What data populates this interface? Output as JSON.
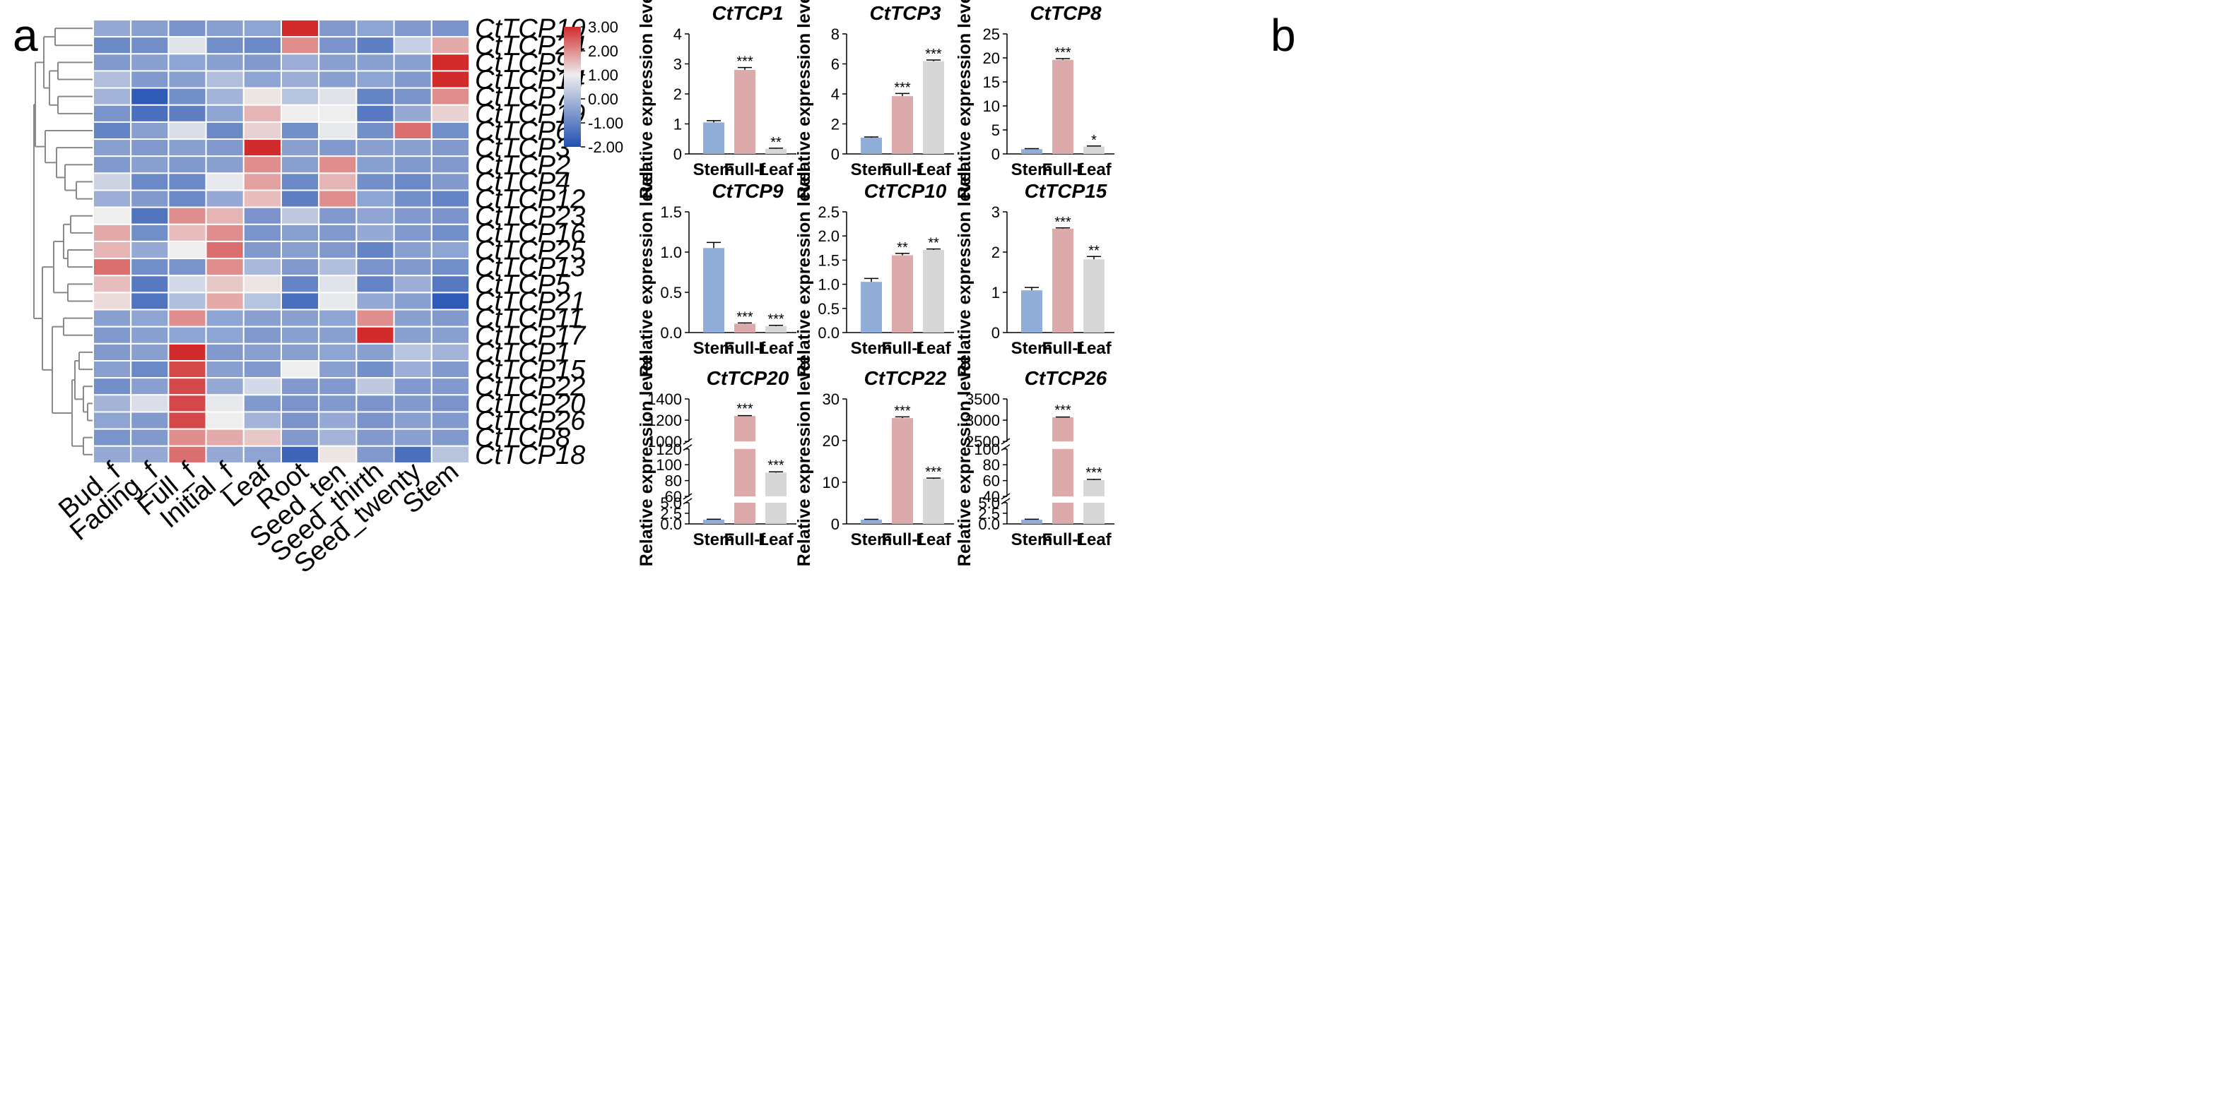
{
  "panels": {
    "a": "a",
    "b": "b"
  },
  "chart_data": [
    {
      "type": "heatmap",
      "title": "",
      "rows": [
        "CtTCP10",
        "CtTCP24",
        "CtTCP9",
        "CtTCP14",
        "CtTCP7",
        "CtTCP19",
        "CtTCP6",
        "CtTCP3",
        "CtTCP2",
        "CtTCP4",
        "CtTCP12",
        "CtTCP23",
        "CtTCP16",
        "CtTCP25",
        "CtTCP13",
        "CtTCP5",
        "CtTCP21",
        "CtTCP11",
        "CtTCP17",
        "CtTCP1",
        "CtTCP15",
        "CtTCP22",
        "CtTCP20",
        "CtTCP26",
        "CtTCP8",
        "CtTCP18"
      ],
      "columns": [
        "Bud_f",
        "Fading_f",
        "Full_f",
        "Initial_f",
        "Leaf",
        "Root",
        "Seed_ten",
        "Seed_thirth",
        "Seed_twenty",
        "Stem"
      ],
      "values": [
        [
          -0.3,
          -0.5,
          -0.7,
          -0.5,
          -0.4,
          3.0,
          -0.6,
          -0.4,
          -0.6,
          -0.7
        ],
        [
          -0.9,
          -0.8,
          0.8,
          -0.8,
          -0.9,
          2.0,
          -0.7,
          -1.1,
          0.4,
          1.7
        ],
        [
          -0.6,
          -0.5,
          -0.4,
          -0.5,
          -0.6,
          -0.2,
          -0.5,
          -0.5,
          -0.5,
          3.0
        ],
        [
          0.1,
          -0.6,
          -0.5,
          0.1,
          -0.4,
          -0.2,
          -0.5,
          -0.4,
          -0.6,
          3.0
        ],
        [
          -0.1,
          -1.8,
          -0.8,
          -0.1,
          1.1,
          0.2,
          0.8,
          -1.0,
          -0.7,
          2.0
        ],
        [
          -0.7,
          -1.4,
          -1.1,
          -0.4,
          1.6,
          1.0,
          1.0,
          -1.2,
          -0.3,
          1.3
        ],
        [
          -1.0,
          -0.5,
          0.7,
          -0.9,
          1.3,
          -0.8,
          0.9,
          -0.8,
          2.3,
          -0.8
        ],
        [
          -0.5,
          -0.6,
          -0.5,
          -0.6,
          3.0,
          -0.5,
          -0.6,
          -0.5,
          -0.5,
          -0.6
        ],
        [
          -0.6,
          -0.5,
          -0.6,
          -0.5,
          2.0,
          -0.5,
          2.0,
          -0.5,
          -0.6,
          -0.6
        ],
        [
          0.5,
          -0.9,
          -0.9,
          0.9,
          1.8,
          -0.9,
          1.6,
          -0.8,
          -0.9,
          -0.6
        ],
        [
          -0.2,
          -0.6,
          -0.9,
          -0.3,
          1.5,
          -1.1,
          2.0,
          -0.4,
          -0.8,
          -1.0
        ],
        [
          1.0,
          -1.3,
          2.0,
          1.6,
          -0.7,
          0.3,
          -0.6,
          -0.4,
          -0.6,
          -0.7
        ],
        [
          1.7,
          -0.8,
          1.5,
          2.0,
          -0.7,
          -0.5,
          -0.6,
          -0.3,
          -0.6,
          -0.8
        ],
        [
          1.6,
          -0.3,
          1.0,
          2.3,
          -0.6,
          -0.5,
          -0.6,
          -1.0,
          -0.5,
          -0.4
        ],
        [
          2.3,
          -0.8,
          -0.7,
          2.0,
          0.0,
          -0.6,
          0.1,
          -0.7,
          -0.6,
          -0.8
        ],
        [
          1.5,
          -1.2,
          0.6,
          1.4,
          1.1,
          -1.0,
          0.8,
          -1.0,
          -0.2,
          -1.2
        ],
        [
          1.2,
          -1.3,
          0.1,
          1.7,
          0.2,
          -1.4,
          0.9,
          -0.3,
          -0.5,
          -1.8
        ],
        [
          -0.5,
          -0.4,
          2.0,
          -0.4,
          -0.5,
          -0.5,
          -0.4,
          2.0,
          -0.5,
          -0.6
        ],
        [
          -0.6,
          -0.5,
          -0.4,
          -0.4,
          -0.6,
          -0.5,
          -0.5,
          3.0,
          -0.5,
          -0.5
        ],
        [
          -0.6,
          -0.5,
          3.0,
          -0.6,
          -0.5,
          -0.5,
          -0.4,
          -0.5,
          0.2,
          -0.1
        ],
        [
          -0.5,
          -0.9,
          2.7,
          -0.5,
          -0.6,
          1.0,
          -0.5,
          -0.8,
          -0.2,
          -0.6
        ],
        [
          -0.8,
          -0.5,
          2.7,
          -0.3,
          0.6,
          -0.6,
          -0.6,
          0.3,
          -0.6,
          -0.6
        ],
        [
          -0.1,
          0.7,
          2.7,
          0.9,
          -0.6,
          -0.7,
          -0.6,
          -0.7,
          -0.6,
          -0.7
        ],
        [
          -0.4,
          -0.6,
          2.7,
          1.0,
          -0.1,
          -0.7,
          -0.3,
          -0.7,
          -0.5,
          -0.6
        ],
        [
          -0.7,
          -0.6,
          2.0,
          1.7,
          1.4,
          -0.6,
          -0.1,
          -0.6,
          -0.5,
          -0.6
        ],
        [
          -0.3,
          -0.3,
          2.3,
          -0.3,
          -0.4,
          -1.6,
          1.1,
          -0.6,
          -1.4,
          0.2
        ]
      ],
      "colorbar": {
        "min": -2.0,
        "max": 3.0,
        "ticks": [
          "3.00",
          "2.00",
          "1.00",
          "0.00",
          "-1.00",
          "-2.00"
        ]
      }
    },
    {
      "type": "bar",
      "title": "CtTCP1",
      "ylabel": "Relative expression level",
      "categories": [
        "Stem",
        "Full-f",
        "Leaf"
      ],
      "values": [
        1.05,
        2.8,
        0.17
      ],
      "errors": [
        0.06,
        0.08,
        0.02
      ],
      "significance": [
        "",
        "***",
        "**"
      ],
      "ylim": [
        0,
        4
      ],
      "ticks": [
        "0",
        "1",
        "2",
        "3",
        "4"
      ]
    },
    {
      "type": "bar",
      "title": "CtTCP3",
      "ylabel": "Relative expression level",
      "categories": [
        "Stem",
        "Full-f",
        "Leaf"
      ],
      "values": [
        1.08,
        3.85,
        6.18
      ],
      "errors": [
        0.05,
        0.18,
        0.08
      ],
      "significance": [
        "",
        "***",
        "***"
      ],
      "ylim": [
        0,
        8
      ],
      "ticks": [
        "0",
        "2",
        "4",
        "6",
        "8"
      ]
    },
    {
      "type": "bar",
      "title": "CtTCP8",
      "ylabel": "Relative expression level",
      "categories": [
        "Stem",
        "Full-f",
        "Leaf"
      ],
      "values": [
        1.0,
        19.6,
        1.55
      ],
      "errors": [
        0.1,
        0.25,
        0.1
      ],
      "significance": [
        "",
        "***",
        "*"
      ],
      "ylim": [
        0,
        25
      ],
      "ticks": [
        "0",
        "5",
        "10",
        "15",
        "20",
        "25"
      ]
    },
    {
      "type": "bar",
      "title": "CtTCP9",
      "ylabel": "Relative expression level",
      "categories": [
        "Stem",
        "Full-f",
        "Leaf"
      ],
      "values": [
        1.05,
        0.11,
        0.08
      ],
      "errors": [
        0.07,
        0.01,
        0.01
      ],
      "significance": [
        "",
        "***",
        "***"
      ],
      "ylim": [
        0,
        1.5
      ],
      "ticks": [
        "0.0",
        "0.5",
        "1.0",
        "1.5"
      ]
    },
    {
      "type": "bar",
      "title": "CtTCP10",
      "ylabel": "Relative expression level",
      "categories": [
        "Stem",
        "Full-f",
        "Leaf"
      ],
      "values": [
        1.05,
        1.6,
        1.71
      ],
      "errors": [
        0.07,
        0.04,
        0.02
      ],
      "significance": [
        "",
        "**",
        "**"
      ],
      "ylim": [
        0,
        2.5
      ],
      "ticks": [
        "0.0",
        "0.5",
        "1.0",
        "1.5",
        "2.0",
        "2.5"
      ]
    },
    {
      "type": "bar",
      "title": "CtTCP15",
      "ylabel": "Relative expression level",
      "categories": [
        "Stem",
        "Full-f",
        "Leaf"
      ],
      "values": [
        1.05,
        2.58,
        1.82
      ],
      "errors": [
        0.07,
        0.02,
        0.07
      ],
      "significance": [
        "",
        "***",
        "**"
      ],
      "ylim": [
        0,
        3
      ],
      "ticks": [
        "0",
        "1",
        "2",
        "3"
      ]
    },
    {
      "type": "bar",
      "title": "CtTCP20",
      "ylabel": "Relative expression level",
      "categories": [
        "Stem",
        "Full-f",
        "Leaf"
      ],
      "values": [
        1.0,
        1240,
        90
      ],
      "errors": [
        0.1,
        3,
        1
      ],
      "significance": [
        "",
        "***",
        "***"
      ],
      "segments": [
        {
          "range": [
            0,
            5
          ],
          "ticks": [
            "0.0",
            "2.5",
            "5.0"
          ]
        },
        {
          "range": [
            60,
            120
          ],
          "ticks": [
            "60",
            "80",
            "100",
            "120"
          ]
        },
        {
          "range": [
            1000,
            1400
          ],
          "ticks": [
            "1000",
            "1200",
            "1400"
          ]
        }
      ]
    },
    {
      "type": "bar",
      "title": "CtTCP22",
      "ylabel": "Relative expression level",
      "categories": [
        "Stem",
        "Full-f",
        "Leaf"
      ],
      "values": [
        1.0,
        25.4,
        10.8
      ],
      "errors": [
        0.1,
        0.3,
        0.2
      ],
      "significance": [
        "",
        "***",
        "***"
      ],
      "ylim": [
        0,
        30
      ],
      "ticks": [
        "0",
        "10",
        "20",
        "30"
      ]
    },
    {
      "type": "bar",
      "title": "CtTCP26",
      "ylabel": "Relative expression level",
      "categories": [
        "Stem",
        "Full-f",
        "Leaf"
      ],
      "values": [
        1.0,
        2850,
        54
      ],
      "errors": [
        0.1,
        10,
        1
      ],
      "significance": [
        "",
        "***",
        "***"
      ],
      "segments": [
        {
          "range": [
            0,
            5
          ],
          "ticks": [
            "0.0",
            "2.5",
            "5.0"
          ]
        },
        {
          "range": [
            30,
            100
          ],
          "ticks": [
            "40",
            "60",
            "80",
            "100"
          ]
        },
        {
          "range": [
            2000,
            3500
          ],
          "ticks": [
            "2500",
            "3000",
            "3500"
          ]
        }
      ]
    }
  ]
}
